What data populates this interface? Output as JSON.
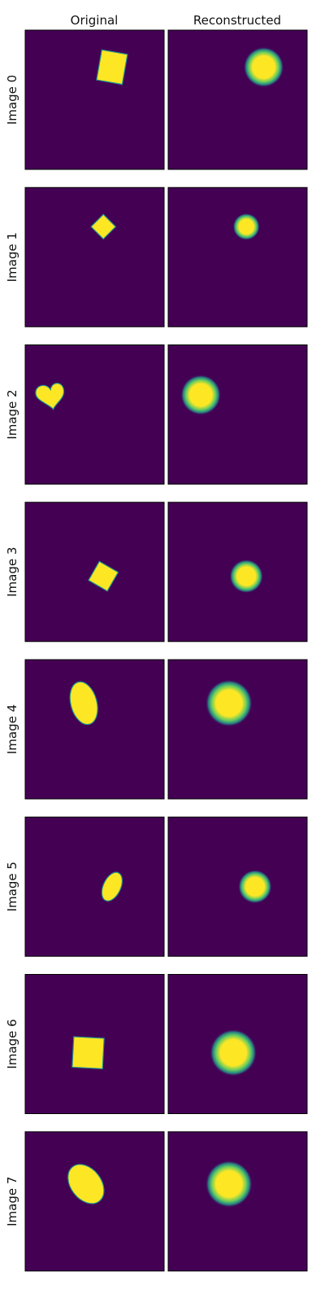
{
  "columns": [
    "Original",
    "Reconstructed"
  ],
  "background_color": "#440154",
  "shape_color": "#fde725",
  "edge_color": "#21918c",
  "rows": [
    {
      "label": "Image 0",
      "original": {
        "shape": "square",
        "cx": 40,
        "cy": 17,
        "rx": 6,
        "ry": 7,
        "rot": 10
      },
      "reconstructed": {
        "cx": 44,
        "cy": 17,
        "r": 6
      }
    },
    {
      "label": "Image 1",
      "original": {
        "shape": "square",
        "cx": 36,
        "cy": 18,
        "rx": 4,
        "ry": 4,
        "rot": 45
      },
      "reconstructed": {
        "cx": 36,
        "cy": 18,
        "r": 4
      }
    },
    {
      "label": "Image 2",
      "original": {
        "shape": "heart",
        "cx": 12,
        "cy": 23,
        "rx": 7,
        "ry": 7,
        "rot": -8
      },
      "reconstructed": {
        "cx": 15,
        "cy": 23,
        "r": 6
      }
    },
    {
      "label": "Image 3",
      "original": {
        "shape": "square",
        "cx": 36,
        "cy": 34,
        "rx": 5,
        "ry": 5,
        "rot": 30
      },
      "reconstructed": {
        "cx": 36,
        "cy": 34,
        "r": 5
      }
    },
    {
      "label": "Image 4",
      "original": {
        "shape": "ellipse",
        "cx": 27,
        "cy": 20,
        "rx": 6,
        "ry": 10,
        "rot": -15
      },
      "reconstructed": {
        "cx": 28,
        "cy": 20,
        "r": 7
      }
    },
    {
      "label": "Image 5",
      "original": {
        "shape": "ellipse",
        "cx": 40,
        "cy": 32,
        "rx": 4,
        "ry": 7,
        "rot": 25
      },
      "reconstructed": {
        "cx": 40,
        "cy": 32,
        "r": 5
      }
    },
    {
      "label": "Image 6",
      "original": {
        "shape": "square",
        "cx": 29,
        "cy": 36,
        "rx": 7,
        "ry": 7,
        "rot": 3
      },
      "reconstructed": {
        "cx": 30,
        "cy": 36,
        "r": 7
      }
    },
    {
      "label": "Image 7",
      "original": {
        "shape": "ellipse",
        "cx": 28,
        "cy": 24,
        "rx": 7,
        "ry": 10,
        "rot": -38
      },
      "reconstructed": {
        "cx": 28,
        "cy": 24,
        "r": 7
      }
    }
  ]
}
